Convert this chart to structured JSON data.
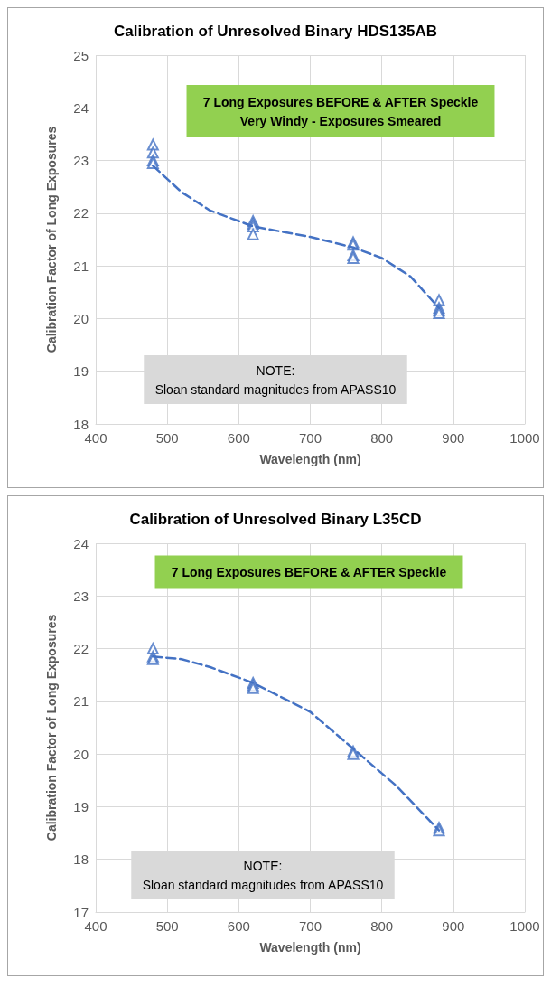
{
  "chart_data": [
    {
      "type": "scatter",
      "title": "Calibration of Unresolved Binary HDS135AB",
      "xlabel": "Wavelength (nm)",
      "ylabel": "Calibration Factor of Long Exposures",
      "annotations": [
        "7 Long Exposures BEFORE & AFTER Speckle\nVery Windy - Exposures Smeared",
        "NOTE:\nSloan standard magnitudes from APASS10"
      ],
      "xlim": [
        400,
        1000
      ],
      "xticks": [
        400,
        500,
        600,
        700,
        800,
        900,
        1000
      ],
      "ylim": [
        18,
        25
      ],
      "yticks": [
        18,
        19,
        20,
        21,
        22,
        23,
        24,
        25
      ],
      "grid": true,
      "series": [
        {
          "color": "#4472c4",
          "marker": "triangle",
          "x": [
            480,
            480,
            480,
            480,
            620,
            620,
            620,
            620,
            760,
            760,
            760,
            760,
            880,
            880,
            880,
            880
          ],
          "values": [
            23.3,
            23.15,
            23.0,
            22.95,
            21.85,
            21.8,
            21.75,
            21.6,
            21.45,
            21.4,
            21.2,
            21.15,
            20.35,
            20.2,
            20.15,
            20.1
          ]
        },
        {
          "type": "line",
          "color": "#4472c4",
          "marker": "none",
          "line_style": "dashed",
          "x": [
            480,
            520,
            560,
            620,
            700,
            760,
            800,
            840,
            880
          ],
          "values": [
            22.9,
            22.4,
            22.05,
            21.75,
            21.55,
            21.35,
            21.15,
            20.8,
            20.2
          ]
        }
      ]
    },
    {
      "type": "scatter",
      "title": "Calibration of Unresolved Binary L35CD",
      "xlabel": "Wavelength (nm)",
      "ylabel": "Calibration Factor of Long Exposures",
      "annotations": [
        "7 Long Exposures BEFORE & AFTER Speckle",
        "NOTE:\nSloan standard magnitudes from APASS10"
      ],
      "xlim": [
        400,
        1000
      ],
      "xticks": [
        400,
        500,
        600,
        700,
        800,
        900,
        1000
      ],
      "ylim": [
        17,
        24
      ],
      "yticks": [
        17,
        18,
        19,
        20,
        21,
        22,
        23,
        24
      ],
      "grid": true,
      "series": [
        {
          "color": "#4472c4",
          "marker": "triangle",
          "x": [
            480,
            480,
            480,
            620,
            620,
            620,
            760,
            760,
            880,
            880
          ],
          "values": [
            22.0,
            21.85,
            21.8,
            21.35,
            21.3,
            21.25,
            20.05,
            20.0,
            18.6,
            18.55
          ]
        },
        {
          "type": "line",
          "color": "#4472c4",
          "marker": "none",
          "line_style": "dashed",
          "x": [
            480,
            520,
            560,
            620,
            700,
            760,
            820,
            880
          ],
          "values": [
            21.85,
            21.8,
            21.65,
            21.35,
            20.8,
            20.1,
            19.4,
            18.55
          ]
        }
      ]
    }
  ]
}
